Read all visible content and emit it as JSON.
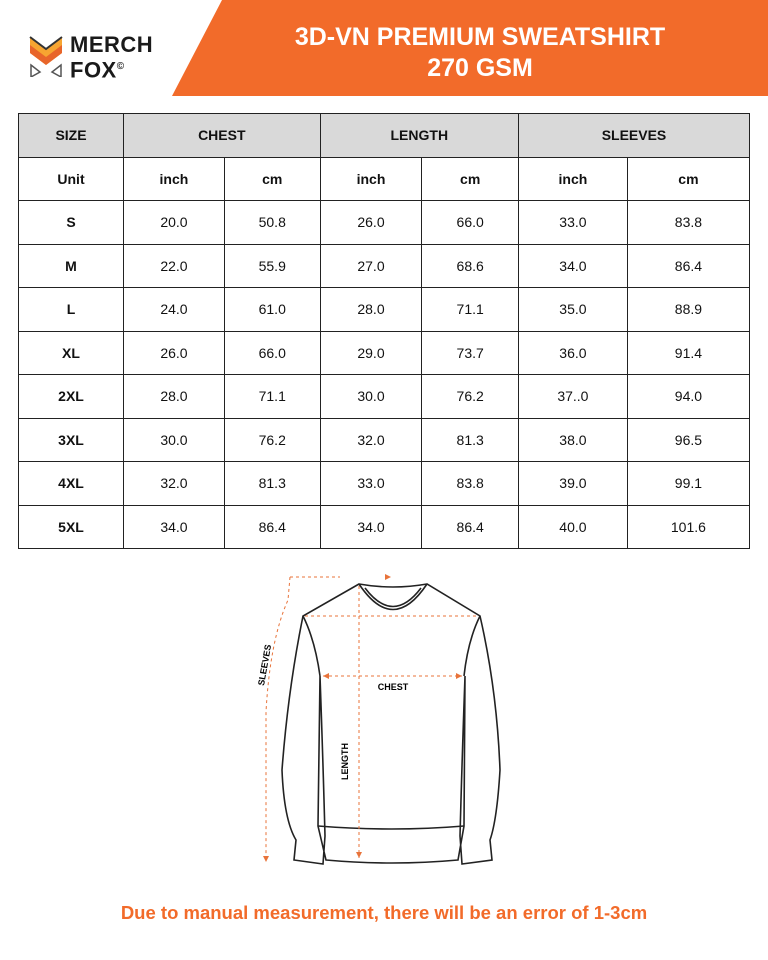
{
  "brand": {
    "line1": "MERCH",
    "line2": "FOX",
    "mark": "©"
  },
  "header": {
    "title_line1": "3D-VN PREMIUM SWEATSHIRT",
    "title_line2": "270 GSM",
    "accent": "#f26b2a"
  },
  "table": {
    "groups": [
      "SIZE",
      "CHEST",
      "LENGTH",
      "SLEEVES"
    ],
    "unit_row": [
      "Unit",
      "inch",
      "cm",
      "inch",
      "cm",
      "inch",
      "cm"
    ],
    "rows": [
      [
        "S",
        "20.0",
        "50.8",
        "26.0",
        "66.0",
        "33.0",
        "83.8"
      ],
      [
        "M",
        "22.0",
        "55.9",
        "27.0",
        "68.6",
        "34.0",
        "86.4"
      ],
      [
        "L",
        "24.0",
        "61.0",
        "28.0",
        "71.1",
        "35.0",
        "88.9"
      ],
      [
        "XL",
        "26.0",
        "66.0",
        "29.0",
        "73.7",
        "36.0",
        "91.4"
      ],
      [
        "2XL",
        "28.0",
        "71.1",
        "30.0",
        "76.2",
        "37..0",
        "94.0"
      ],
      [
        "3XL",
        "30.0",
        "76.2",
        "32.0",
        "81.3",
        "38.0",
        "96.5"
      ],
      [
        "4XL",
        "32.0",
        "81.3",
        "33.0",
        "83.8",
        "39.0",
        "99.1"
      ],
      [
        "5XL",
        "34.0",
        "86.4",
        "34.0",
        "86.4",
        "40.0",
        "101.6"
      ]
    ]
  },
  "diagram": {
    "sleeves": "SLEEVES",
    "chest": "CHEST",
    "length": "LENGTH"
  },
  "note": "Due to manual measurement, there will be an error of 1-3cm"
}
